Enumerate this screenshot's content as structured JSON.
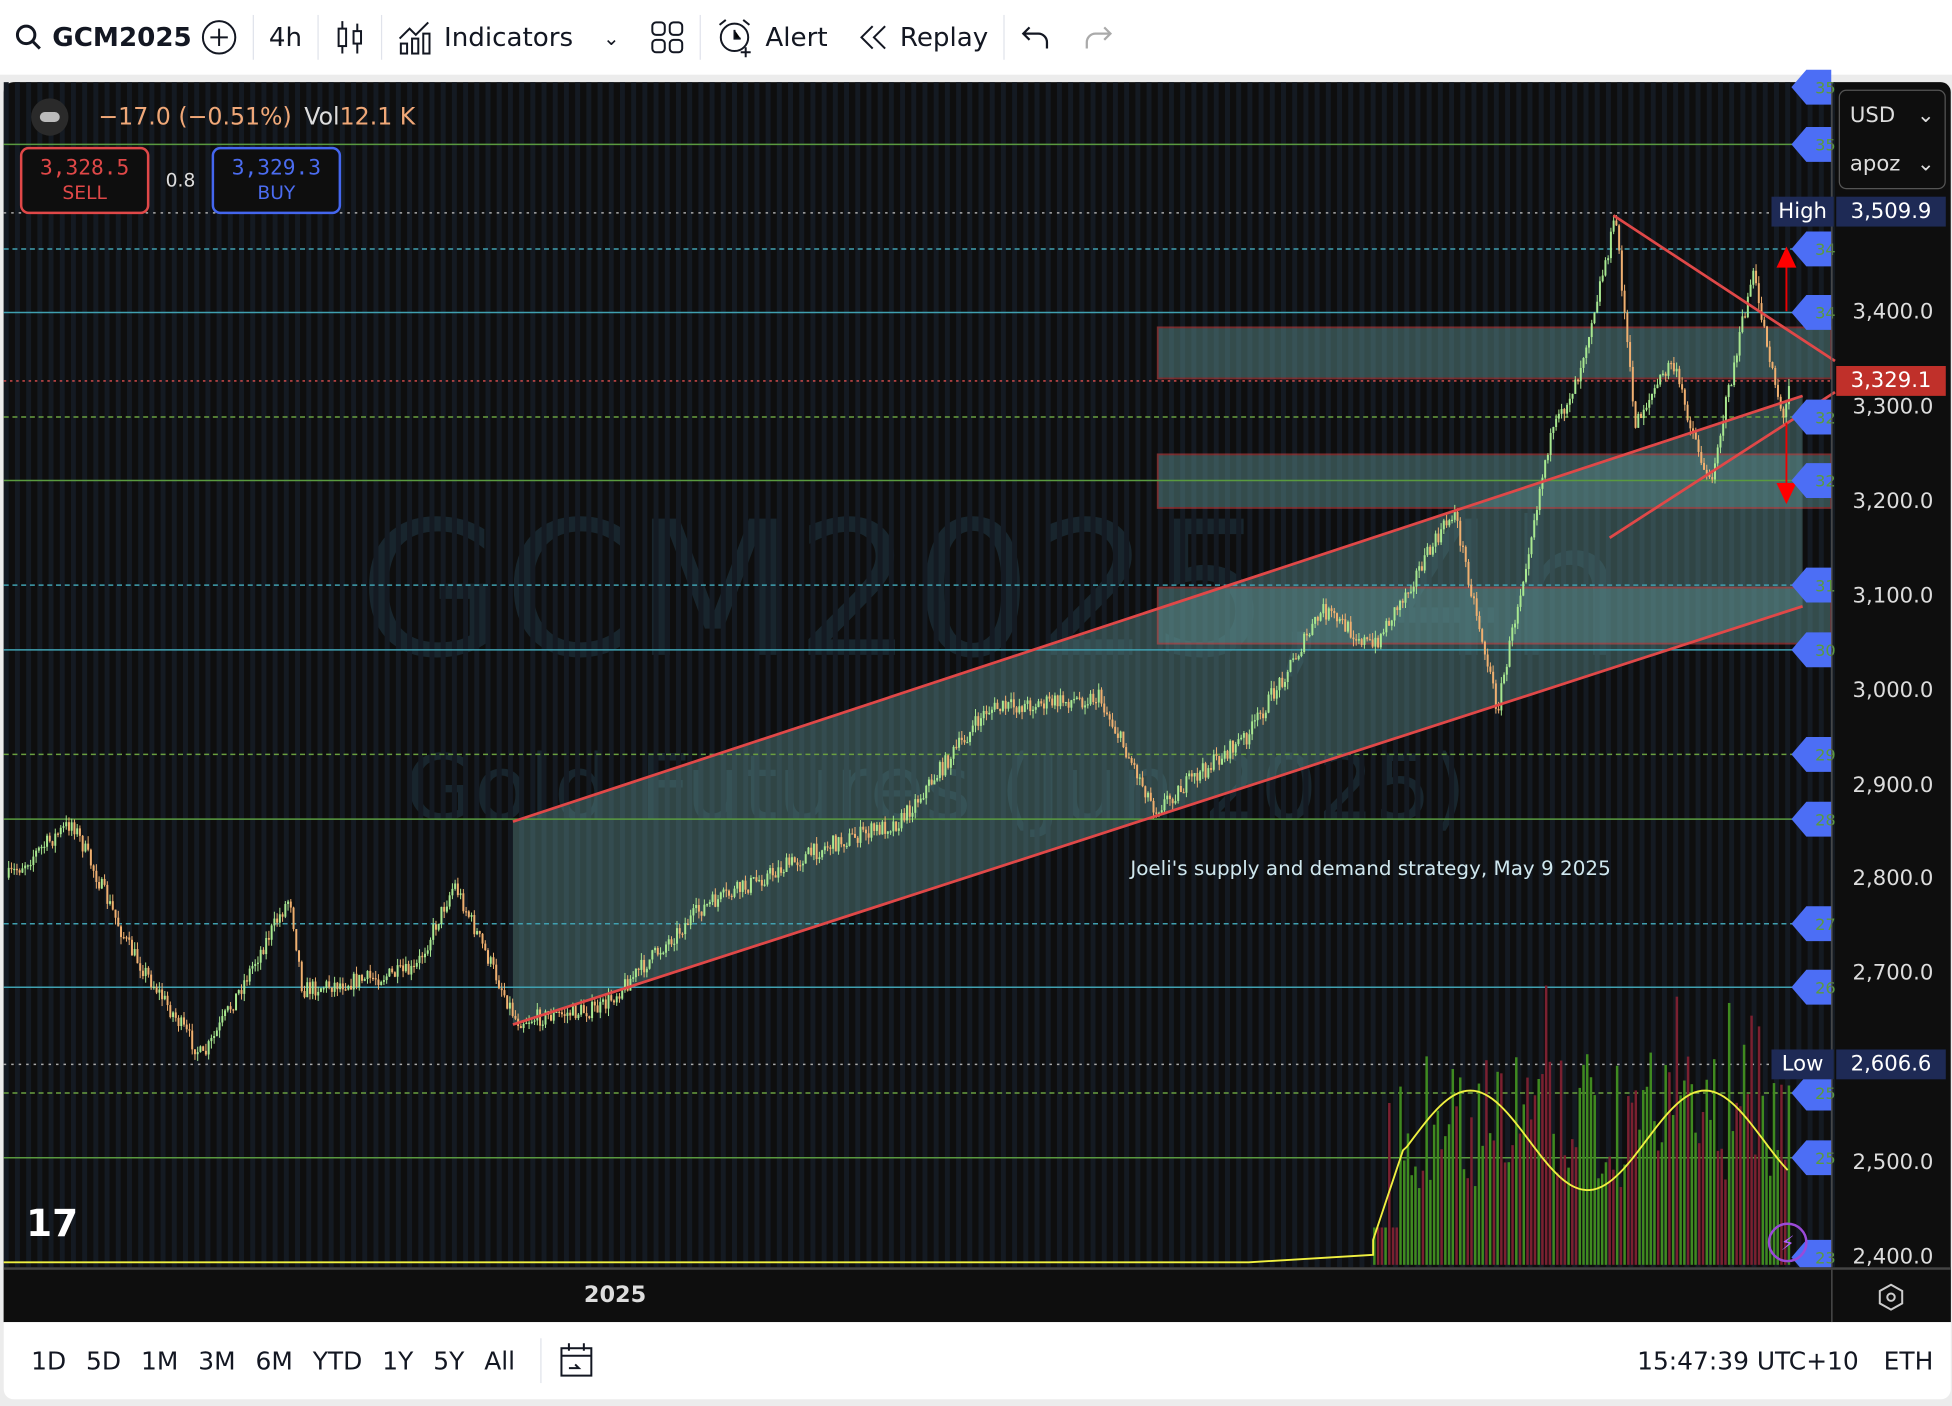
{
  "toolbar": {
    "symbol": "GCM2025",
    "interval": "4h",
    "indicators": "Indicators",
    "alert": "Alert",
    "replay": "Replay"
  },
  "legend": {
    "change": "−17.0 (−0.51%)",
    "vol_label": "Vol",
    "vol_value": "12.1 K"
  },
  "trade": {
    "sell_price": "3,328.5",
    "sell_label": "SELL",
    "spread": "0.8",
    "buy_price": "3,329.3",
    "buy_label": "BUY"
  },
  "axis": {
    "currency": "USD",
    "unit": "apoz",
    "ticks": [
      "3,400.0",
      "3,300.0",
      "3,200.0",
      "3,100.0",
      "3,000.0",
      "2,900.0",
      "2,800.0",
      "2,700.0",
      "2,500.0",
      "2,400.0"
    ],
    "high_label": "High",
    "high_value": "3,509.9",
    "low_label": "Low",
    "low_value": "2,606.6",
    "last_price": "3,329.1"
  },
  "alert_tags": [
    "35",
    "35",
    "34",
    "34",
    "32",
    "32",
    "31",
    "30",
    "29",
    "28",
    "27",
    "26",
    "25",
    "25",
    "23"
  ],
  "watermark": {
    "line1": "GCM2025, 4h",
    "line2": "Gold Futures (Jun 2025)"
  },
  "annotation": "Joeli's supply and demand strategy, May 9 2025",
  "time_axis": {
    "label": "2025"
  },
  "bottom": {
    "ranges": [
      "1D",
      "5D",
      "1M",
      "3M",
      "6M",
      "YTD",
      "1Y",
      "5Y",
      "All"
    ],
    "clock": "15:47:39 UTC+10",
    "session": "ETH"
  },
  "colors": {
    "up": "#a8e890",
    "down": "#f0b070",
    "zone": "#5a8a8a",
    "trend": "#e04848",
    "alert_tag": "#4c6ef5",
    "volume_ma": "#f0f040"
  }
}
